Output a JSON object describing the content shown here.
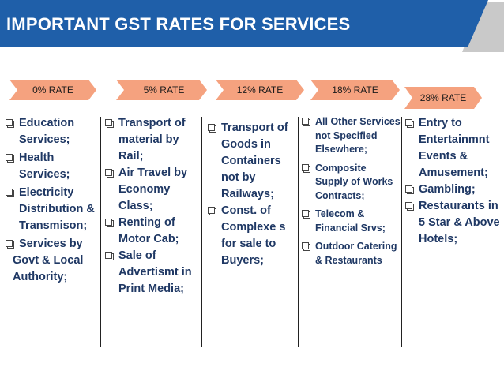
{
  "title": "IMPORTANT GST RATES FOR SERVICES",
  "colors": {
    "banner": "#1f5fa9",
    "accent": "#c9c9c9",
    "rate_fill": "#f5a27f",
    "text": "#1f3864"
  },
  "rates": [
    {
      "label": "0% RATE"
    },
    {
      "label": "5% RATE"
    },
    {
      "label": "12% RATE"
    },
    {
      "label": "18% RATE"
    },
    {
      "label": "28% RATE"
    }
  ],
  "columns": [
    {
      "items": [
        "Education Services;",
        "Health Services;",
        "Electricity Distribution & Transmison;",
        "Services by"
      ],
      "tail": "Govt & Local Authority;"
    },
    {
      "items": [
        "Transport of material by Rail;",
        "Air Travel by Economy Class;",
        "Renting of Motor Cab;",
        "Sale of Advertismt in Print Media;"
      ]
    },
    {
      "items": [
        "Transport of Goods in Containers not by Railways;",
        "Const. of Complexe s for sale to Buyers;"
      ]
    },
    {
      "items": [
        "All Other Services not Specified Elsewhere;",
        "Composite Supply of Works Contracts;",
        "Telecom & Financial Srvs;",
        "Outdoor Catering & Restaurants"
      ]
    },
    {
      "items": [
        "Entry to Entertainmnt Events & Amusement;",
        "Gambling;",
        "Restaurants in 5 Star & Above Hotels;"
      ]
    }
  ]
}
